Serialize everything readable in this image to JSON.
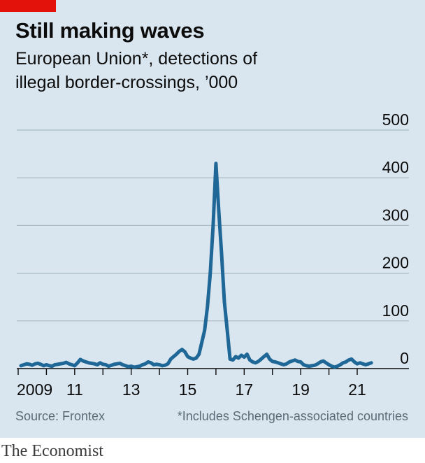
{
  "header": {
    "title": "Still making waves",
    "subtitle_line1": "European Union*, detections of",
    "subtitle_line2": "illegal border-crossings, ’000"
  },
  "footer": {
    "source": "Source: Frontex",
    "note": "*Includes Schengen-associated countries",
    "brand": "The Economist"
  },
  "colors": {
    "background": "#d9e6ef",
    "accent_red": "#e3120b",
    "line": "#1f6796",
    "grid": "#a8b9c4"
  },
  "chart_data": {
    "type": "line",
    "title": "Still making waves",
    "subtitle": "European Union*, detections of illegal border-crossings, ’000",
    "xlabel": "",
    "ylabel": "",
    "ylim": [
      0,
      500
    ],
    "xlim": [
      2009.0,
      2022.0
    ],
    "y_ticks": [
      0,
      100,
      200,
      300,
      400,
      500
    ],
    "y_tick_labels": [
      "0",
      "100",
      "200",
      "300",
      "400",
      "500"
    ],
    "x_tick_labels": [
      {
        "x": 2009,
        "label": "2009"
      },
      {
        "x": 2011,
        "label": "11"
      },
      {
        "x": 2013,
        "label": "13"
      },
      {
        "x": 2015,
        "label": "15"
      },
      {
        "x": 2017,
        "label": "17"
      },
      {
        "x": 2019,
        "label": "19"
      },
      {
        "x": 2021,
        "label": "21"
      }
    ],
    "grid": true,
    "series": [
      {
        "name": "",
        "x": [
          2009.1,
          2009.2,
          2009.3,
          2009.4,
          2009.5,
          2009.6,
          2009.7,
          2009.8,
          2009.9,
          2010.0,
          2010.1,
          2010.2,
          2010.3,
          2010.4,
          2010.5,
          2010.6,
          2010.7,
          2010.8,
          2010.9,
          2011.0,
          2011.1,
          2011.2,
          2011.3,
          2011.4,
          2011.5,
          2011.6,
          2011.7,
          2011.8,
          2011.9,
          2012.0,
          2012.1,
          2012.2,
          2012.3,
          2012.4,
          2012.5,
          2012.6,
          2012.7,
          2012.8,
          2012.9,
          2013.0,
          2013.1,
          2013.2,
          2013.3,
          2013.4,
          2013.5,
          2013.6,
          2013.7,
          2013.8,
          2013.9,
          2014.0,
          2014.1,
          2014.2,
          2014.3,
          2014.4,
          2014.5,
          2014.6,
          2014.7,
          2014.8,
          2014.9,
          2015.0,
          2015.1,
          2015.2,
          2015.3,
          2015.4,
          2015.5,
          2015.6,
          2015.7,
          2015.8,
          2015.9,
          2016.0,
          2016.1,
          2016.2,
          2016.3,
          2016.4,
          2016.5,
          2016.6,
          2016.7,
          2016.8,
          2016.9,
          2017.0,
          2017.1,
          2017.2,
          2017.3,
          2017.4,
          2017.5,
          2017.6,
          2017.7,
          2017.8,
          2017.9,
          2018.0,
          2018.1,
          2018.2,
          2018.3,
          2018.4,
          2018.5,
          2018.6,
          2018.7,
          2018.8,
          2018.9,
          2019.0,
          2019.1,
          2019.2,
          2019.3,
          2019.4,
          2019.5,
          2019.6,
          2019.7,
          2019.8,
          2019.9,
          2020.0,
          2020.1,
          2020.2,
          2020.3,
          2020.4,
          2020.5,
          2020.6,
          2020.7,
          2020.8,
          2020.9,
          2021.0,
          2021.1,
          2021.2,
          2021.3,
          2021.4,
          2021.5
        ],
        "y": [
          6,
          8,
          10,
          9,
          7,
          10,
          11,
          9,
          6,
          8,
          6,
          5,
          8,
          9,
          10,
          11,
          13,
          10,
          8,
          6,
          12,
          19,
          16,
          14,
          12,
          11,
          10,
          8,
          12,
          9,
          8,
          5,
          7,
          9,
          10,
          11,
          8,
          6,
          4,
          5,
          3,
          4,
          5,
          8,
          10,
          14,
          12,
          8,
          9,
          8,
          6,
          7,
          10,
          20,
          25,
          30,
          36,
          40,
          35,
          25,
          22,
          20,
          22,
          30,
          55,
          80,
          130,
          200,
          300,
          430,
          330,
          240,
          140,
          80,
          20,
          18,
          25,
          22,
          28,
          24,
          30,
          18,
          14,
          12,
          15,
          20,
          25,
          30,
          20,
          15,
          14,
          12,
          10,
          8,
          10,
          14,
          16,
          18,
          15,
          14,
          8,
          6,
          5,
          6,
          7,
          10,
          14,
          16,
          12,
          8,
          5,
          3,
          5,
          8,
          12,
          14,
          18,
          20,
          14,
          10,
          12,
          10,
          8,
          10,
          12
        ]
      }
    ]
  }
}
